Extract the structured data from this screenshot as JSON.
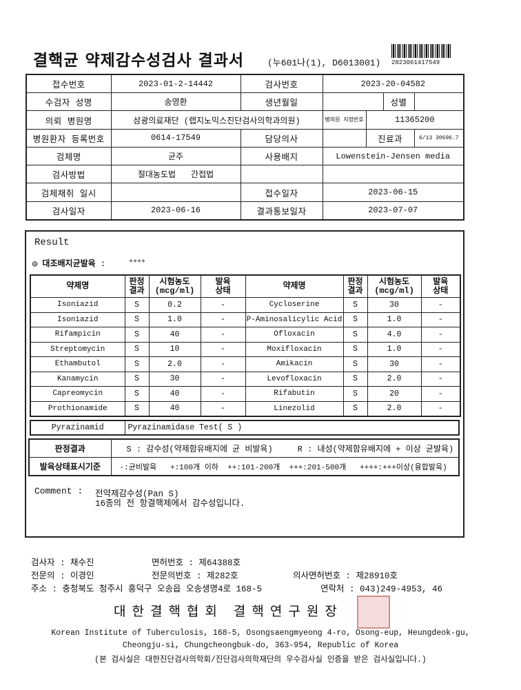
{
  "header": {
    "title": "결핵균 약제감수성검사 결과서",
    "code": "(누601나(1), D6013001)",
    "barcode_number": "2023061417549"
  },
  "info": {
    "rows": [
      [
        "접수번호",
        "2023-01-2-14442",
        "검사번호",
        "2023-20-04582"
      ],
      [
        "수검자 성명",
        "송영환",
        "생년월일",
        "성별"
      ],
      [
        "의뢰 병원명",
        "삼광의료재단 (랩지노믹스진단검사의학과의원)",
        "병의원 지정번호",
        "11365200"
      ],
      [
        "병원환자 등록번호",
        "0614-17549",
        "담당의사",
        "진료과",
        "6/13 30696.7"
      ],
      [
        "검체명",
        "균주",
        "사용배지",
        "Lowenstein-Jensen media"
      ],
      [
        "검사방법",
        "절대농도법",
        "간접법"
      ],
      [
        "검체채취 일시",
        "접수일자",
        "2023-06-15"
      ],
      [
        "검사일자",
        "2023-06-16",
        "결과통보일자",
        "2023-07-07"
      ]
    ]
  },
  "result": {
    "title": "Result",
    "control_label": "◎ 대조배지균발육 :",
    "control_value": "++++",
    "drug_table": {
      "headers": [
        [
          "약제명"
        ],
        [
          "판정",
          "결과"
        ],
        [
          "시험농도",
          "(mcg/ml)"
        ],
        [
          "발육",
          "상태"
        ]
      ],
      "rows": [
        [
          "Isoniazid",
          "S",
          "0.2",
          "-",
          "Cycloserine",
          "S",
          "30",
          "-"
        ],
        [
          "Isoniazid",
          "S",
          "1.0",
          "-",
          "P-Aminosalicylic Acid",
          "S",
          "1.0",
          "-"
        ],
        [
          "Rifampicin",
          "S",
          "40",
          "-",
          "Ofloxacin",
          "S",
          "4.0",
          "-"
        ],
        [
          "Streptomycin",
          "S",
          "10",
          "-",
          "Moxifloxacin",
          "S",
          "1.0",
          "-"
        ],
        [
          "Ethambutol",
          "S",
          "2.0",
          "-",
          "Amikacin",
          "S",
          "30",
          "-"
        ],
        [
          "Kanamycin",
          "S",
          "30",
          "-",
          "Levofloxacin",
          "S",
          "2.0",
          "-"
        ],
        [
          "Capreomycin",
          "S",
          "40",
          "-",
          "Rifabutin",
          "S",
          "20",
          "-"
        ],
        [
          "Prothionamide",
          "S",
          "40",
          "-",
          "Linezolid",
          "S",
          "2.0",
          "-"
        ]
      ]
    },
    "pyrazinamid": [
      "Pyrazinamid",
      "Pyrazinamidase Test( S )"
    ],
    "criteria": [
      [
        "판정결과",
        "S : 감수성(약제함유배지에 균 비발육)",
        "R : 내성(약제함유배지에 + 이상 균발육)"
      ],
      [
        "발육상태표시기준",
        "-:균비발육   +:100개 이하  ++:101-200개  +++:201-500개   ++++:+++이상(융합발육)"
      ]
    ],
    "comment": {
      "label": "Comment :",
      "lines": [
        "전약제감수성(Pan S)",
        "16종의 전 항결핵제에서 감수성입니다."
      ]
    }
  },
  "footer": {
    "tester": "검사자 : 채수진",
    "license": "면허번호 : 제64388호",
    "specialist": "전문의 : 이경인",
    "specialist_number": "전문의번호 : 제282호",
    "doctor_license": "의사면허번호 : 제28910호",
    "address": "주소 : 충청북도 청주시 흥덕구 오송읍 오송생명4로 168-5",
    "contact": "연락처 : 043)249-4953, 46",
    "signature": "대한결핵협회 결핵연구원장",
    "english_address": [
      "Korean Institute of Tuberculosis, 168-5, Osongsaengmyeong 4-ro, Osong-eup, Heungdeok-gu,",
      "Cheongju-si, Chungcheongbuk-do, 363-954, Republic of Korea"
    ],
    "note": "(본 검사실은 대한진단검사의학회/진단검사의학재단의 우수검사실 인증을 받은 검사실입니다.)"
  }
}
